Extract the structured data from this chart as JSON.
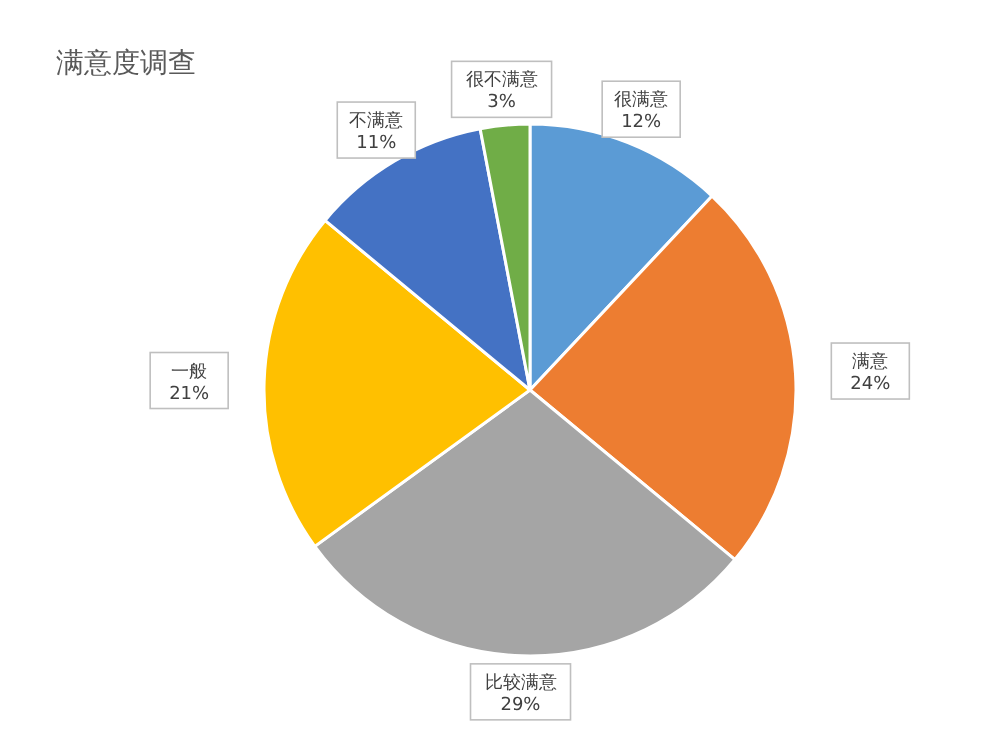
{
  "chart_data": {
    "type": "pie",
    "title": "满意度调查",
    "categories": [
      "很满意",
      "满意",
      "比较满意",
      "一般",
      "不满意",
      "很不满意"
    ],
    "values": [
      12,
      24,
      29,
      21,
      11,
      3
    ],
    "value_labels": [
      "12%",
      "24%",
      "29%",
      "21%",
      "11%",
      "3%"
    ],
    "colors": [
      "#5b9bd5",
      "#ed7d31",
      "#a5a5a5",
      "#ffc000",
      "#4472c4",
      "#70ad47"
    ]
  }
}
